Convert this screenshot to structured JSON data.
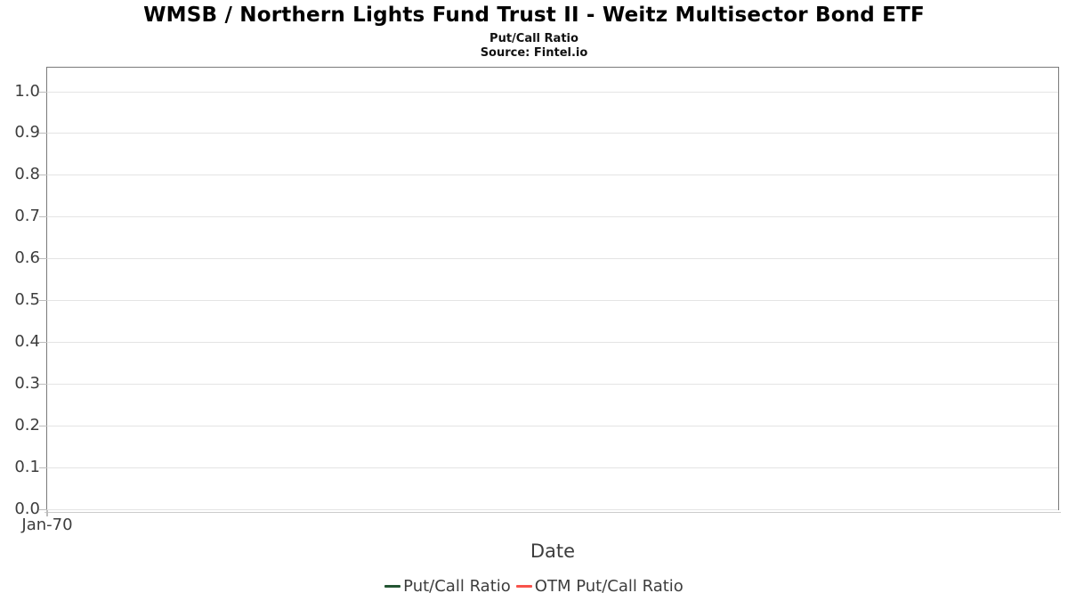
{
  "header": {
    "title": "WMSB / Northern Lights Fund Trust II - Weitz Multisector Bond ETF",
    "subtitle": "Put/Call Ratio",
    "source": "Source: Fintel.io"
  },
  "chart_data": {
    "type": "line",
    "title": "WMSB / Northern Lights Fund Trust II - Weitz Multisector Bond ETF",
    "subtitle": "Put/Call Ratio",
    "source": "Source: Fintel.io",
    "xlabel": "Date",
    "ylabel": "",
    "x_ticks": [
      "Jan-70"
    ],
    "y_ticks": [
      "0.0",
      "0.1",
      "0.2",
      "0.3",
      "0.4",
      "0.5",
      "0.6",
      "0.7",
      "0.8",
      "0.9",
      "1.0"
    ],
    "ylim": [
      0,
      1.06
    ],
    "grid": true,
    "legend_position": "bottom",
    "series": [
      {
        "name": "Put/Call Ratio",
        "color": "#235532",
        "x": [],
        "values": []
      },
      {
        "name": "OTM Put/Call Ratio",
        "color": "#f8534b",
        "x": [],
        "values": []
      }
    ]
  },
  "colors": {
    "background": "#ffffff",
    "axis_border": "#7a7a7a",
    "gridline": "#e4e4e4",
    "tick_mark": "#bdbdbd",
    "tick_text": "#3d3d3d",
    "title_text": "#000000"
  }
}
